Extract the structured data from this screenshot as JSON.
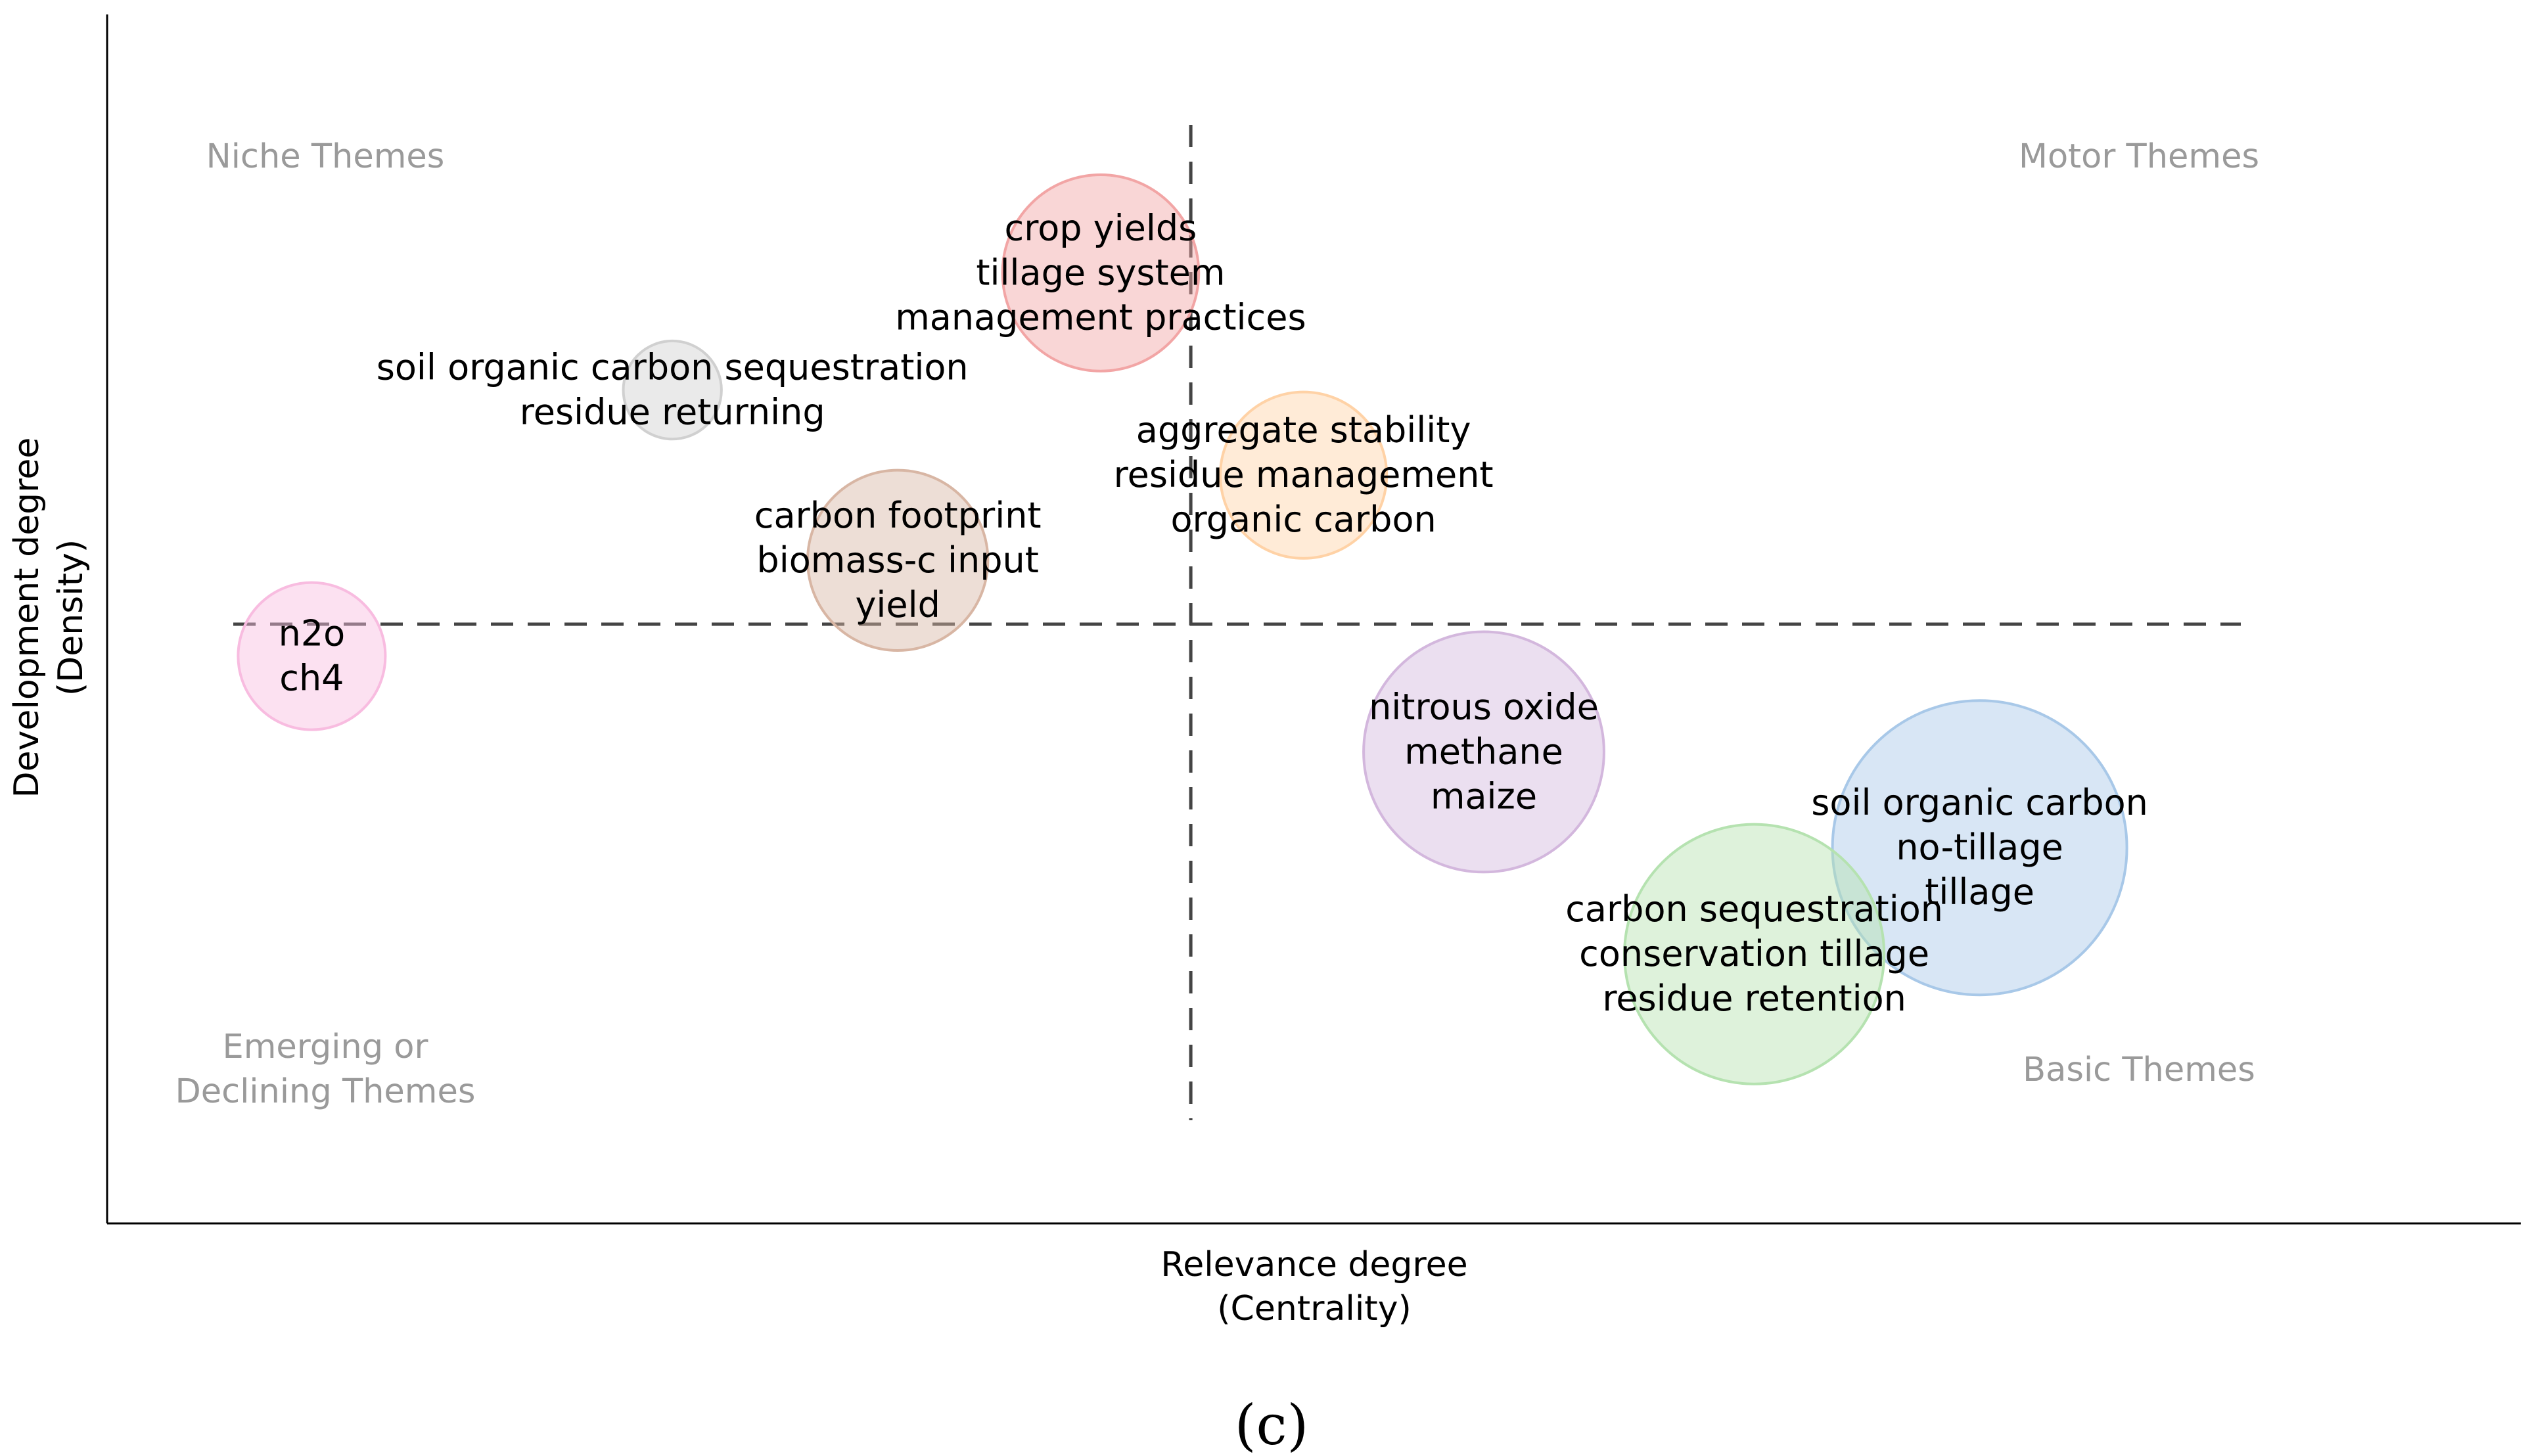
{
  "panel_label": "(c)",
  "chart_data": {
    "type": "scatter",
    "xlabel": [
      "Relevance degree",
      "(Centrality)"
    ],
    "ylabel": [
      "Development degree",
      "(Density)"
    ],
    "quadrants": {
      "top_left": [
        "Niche Themes"
      ],
      "top_right": [
        "Motor Themes"
      ],
      "bottom_left": [
        "Emerging or",
        "Declining Themes"
      ],
      "bottom_right": [
        "Basic Themes"
      ]
    },
    "clusters": [
      {
        "labels": [
          "crop yields",
          "tillage system",
          "management practices"
        ],
        "centrality": 0.43,
        "density": 0.83,
        "size": 0.32,
        "color": "#f2a5a5"
      },
      {
        "labels": [
          "soil organic carbon sequestration",
          "residue returning"
        ],
        "centrality": 0.24,
        "density": 0.72,
        "size": 0.08,
        "color": "#d0d0d0"
      },
      {
        "labels": [
          "aggregate stability",
          "residue management",
          "organic carbon"
        ],
        "centrality": 0.52,
        "density": 0.64,
        "size": 0.23,
        "color": "#ffd2a6"
      },
      {
        "labels": [
          "carbon footprint",
          "biomass-c input",
          "yield"
        ],
        "centrality": 0.34,
        "density": 0.56,
        "size": 0.27,
        "color": "#d8b6a4"
      },
      {
        "labels": [
          "n2o",
          "ch4"
        ],
        "centrality": 0.08,
        "density": 0.47,
        "size": 0.18,
        "color": "#f8bce0"
      },
      {
        "labels": [
          "nitrous oxide",
          "methane",
          "maize"
        ],
        "centrality": 0.6,
        "density": 0.38,
        "size": 0.48,
        "color": "#d3b7dd"
      },
      {
        "labels": [
          "soil organic carbon",
          "no-tillage",
          "tillage"
        ],
        "centrality": 0.82,
        "density": 0.29,
        "size": 0.72,
        "color": "#a8c8e8"
      },
      {
        "labels": [
          "carbon sequestration",
          "conservation tillage",
          "residue retention"
        ],
        "centrality": 0.72,
        "density": 0.19,
        "size": 0.56,
        "color": "#b5e2b0"
      }
    ],
    "xlim": [
      0,
      1
    ],
    "ylim": [
      0,
      1
    ],
    "x_divider": 0.47,
    "y_divider": 0.5,
    "grid": false,
    "legend": "none"
  }
}
